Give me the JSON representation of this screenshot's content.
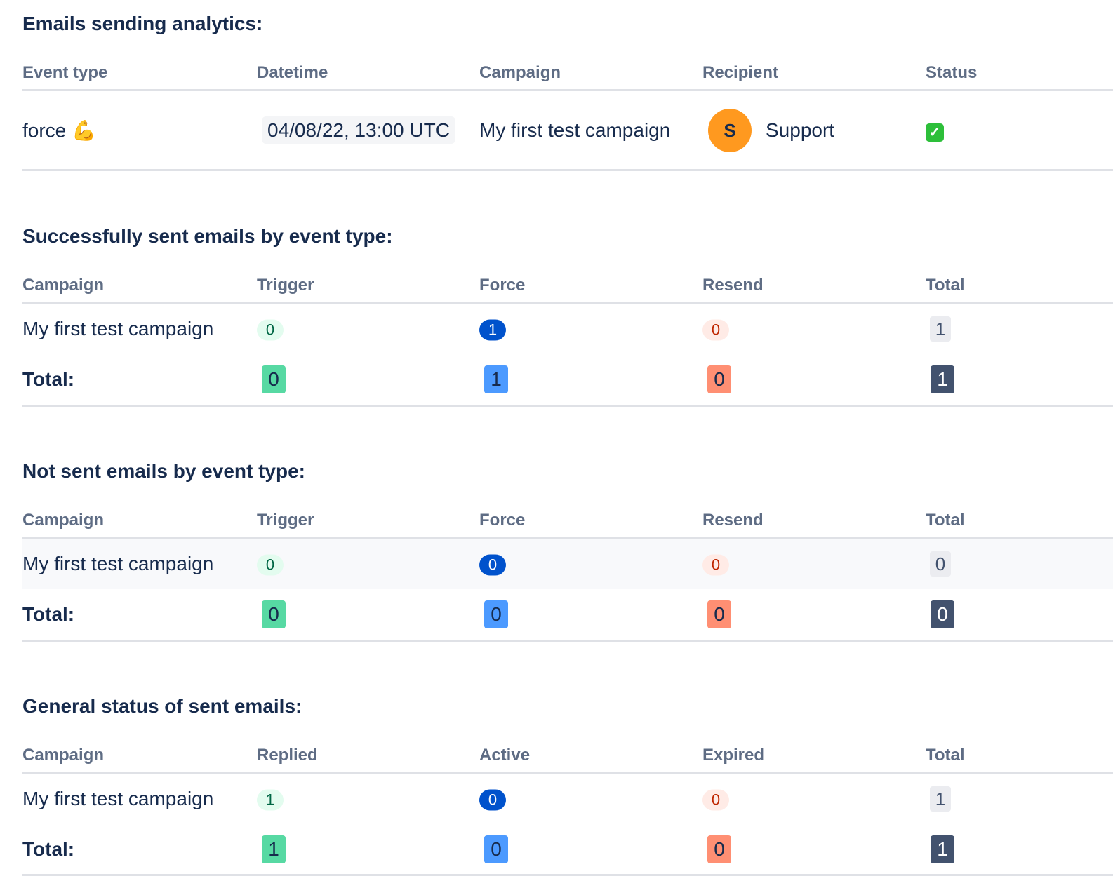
{
  "analytics": {
    "title": "Emails sending analytics:",
    "headers": [
      "Event type",
      "Datetime",
      "Campaign",
      "Recipient",
      "Status"
    ],
    "row": {
      "event_type": "force 💪",
      "datetime": "04/08/22, 13:00 UTC",
      "campaign": "My first test campaign",
      "recipient_initial": "S",
      "recipient_name": "Support",
      "status": "✓",
      "status_icon": "check-icon",
      "avatar_color": "#ff991f"
    }
  },
  "sent": {
    "title": "Successfully sent emails by event type:",
    "headers": [
      "Campaign",
      "Trigger",
      "Force",
      "Resend",
      "Total"
    ],
    "row": {
      "campaign": "My first test campaign",
      "values": [
        "0",
        "1",
        "0",
        "1"
      ]
    },
    "total": {
      "label": "Total:",
      "values": [
        "0",
        "1",
        "0",
        "1"
      ]
    }
  },
  "not_sent": {
    "title": "Not sent emails by event type:",
    "headers": [
      "Campaign",
      "Trigger",
      "Force",
      "Resend",
      "Total"
    ],
    "row": {
      "campaign": "My first test campaign",
      "values": [
        "0",
        "0",
        "0",
        "0"
      ]
    },
    "total": {
      "label": "Total:",
      "values": [
        "0",
        "0",
        "0",
        "0"
      ]
    }
  },
  "general": {
    "title": "General status of sent emails:",
    "headers": [
      "Campaign",
      "Replied",
      "Active",
      "Expired",
      "Total"
    ],
    "row": {
      "campaign": "My first test campaign",
      "values": [
        "1",
        "0",
        "0",
        "1"
      ]
    },
    "total": {
      "label": "Total:",
      "values": [
        "1",
        "0",
        "0",
        "1"
      ]
    }
  },
  "colors": {
    "green_lozenge": "#e3fcef",
    "blue_lozenge": "#0052cc",
    "red_lozenge": "#ffebe6",
    "gray_lozenge": "#ebecf0",
    "green_badge": "#57d9a3",
    "blue_badge": "#4c9aff",
    "red_badge": "#ff8f73",
    "dark_badge": "#42526e"
  }
}
